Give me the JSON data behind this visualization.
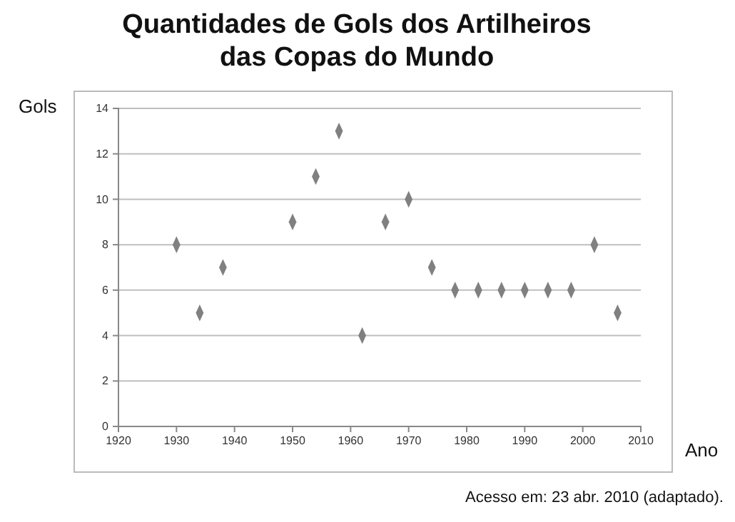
{
  "chart_data": {
    "type": "scatter",
    "title": "Quantidades de Gols dos Artilheiros das Copas do Mundo",
    "xlabel": "Ano",
    "ylabel": "Gols",
    "x": [
      1930,
      1934,
      1938,
      1950,
      1954,
      1958,
      1962,
      1966,
      1970,
      1974,
      1978,
      1982,
      1986,
      1990,
      1994,
      1998,
      2002,
      2006
    ],
    "series": [
      {
        "color": "#808080",
        "values": [
          8,
          5,
          7,
          9,
          11,
          13,
          4,
          9,
          10,
          7,
          6,
          6,
          6,
          6,
          6,
          6,
          8,
          5
        ]
      }
    ],
    "xlim": [
      1920,
      2010
    ],
    "xticks": [
      1920,
      1930,
      1940,
      1950,
      1960,
      1970,
      1980,
      1990,
      2000,
      2010
    ],
    "ylim": [
      0,
      14
    ],
    "yticks": [
      0,
      2,
      4,
      6,
      8,
      10,
      12,
      14
    ],
    "grid": "y",
    "marker": "diamond",
    "annotations": [
      "Acesso em: 23 abr. 2010 (adaptado)."
    ]
  }
}
